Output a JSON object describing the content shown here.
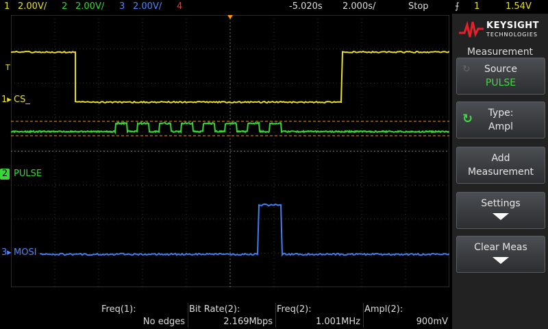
{
  "topbar": {
    "ch1": {
      "num": "1",
      "scale": "2.00V/",
      "color": "#e8e020"
    },
    "ch2": {
      "num": "2",
      "scale": "2.00V/",
      "color": "#36d836"
    },
    "ch3": {
      "num": "3",
      "scale": "2.00V/",
      "color": "#4f86ff"
    },
    "ch4": {
      "num": "4",
      "color": "#ff3030"
    },
    "delay": "-5.020s",
    "timebase": "2.000s/",
    "run_state": "Stop",
    "trigger_source": "1",
    "trigger_level": "1.54V"
  },
  "channels": {
    "ch1_label": "CS_",
    "ch2_label": "PULSE",
    "ch3_label": "MOSI",
    "trigger_marker": "T"
  },
  "measurements": [
    {
      "label": "Freq(1):",
      "value": "No edges"
    },
    {
      "label": "Bit Rate(2):",
      "value": "2.169Mbps"
    },
    {
      "label": "Freq(2):",
      "value": "1.001MHz"
    },
    {
      "label": "Ampl(2):",
      "value": "900mV"
    }
  ],
  "panel": {
    "brand": "KEYSIGHT",
    "brand_sub": "TECHNOLOGIES",
    "title": "Measurement",
    "source_label": "Source",
    "source_value": "PULSE",
    "type_label": "Type:",
    "type_value": "Ampl",
    "add_l1": "Add",
    "add_l2": "Measurement",
    "settings": "Settings",
    "clear": "Clear Meas"
  },
  "icons": [
    "trigger-edge-icon",
    "rotate-knob-icon",
    "down-arrow-icon",
    "keysight-logo-icon"
  ]
}
